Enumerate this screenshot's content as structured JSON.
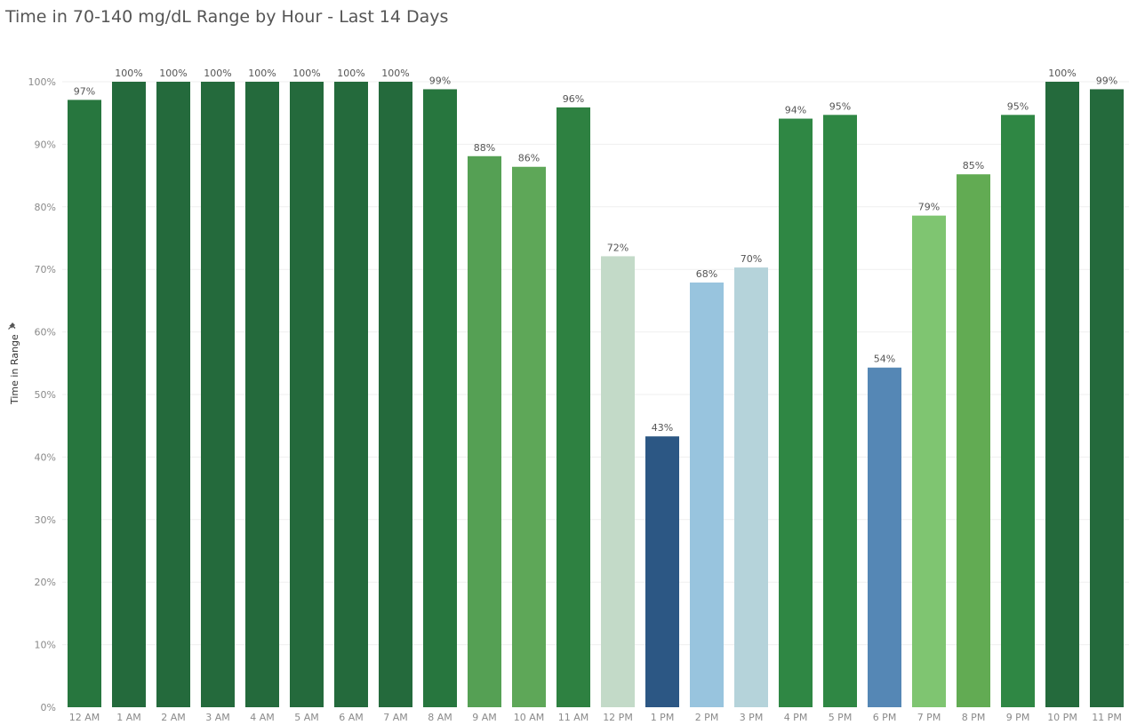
{
  "chart_data": {
    "type": "bar",
    "title": "Time in 70-140 mg/dL Range by Hour - Last 14 Days",
    "ylabel": "Time in Range",
    "xlabel": "",
    "ylim": [
      0,
      100
    ],
    "y_ticks": [
      "0%",
      "10%",
      "20%",
      "30%",
      "40%",
      "50%",
      "60%",
      "70%",
      "80%",
      "90%",
      "100%"
    ],
    "grid": true,
    "categories": [
      "12 AM",
      "1 AM",
      "2 AM",
      "3 AM",
      "4 AM",
      "5 AM",
      "6 AM",
      "7 AM",
      "8 AM",
      "9 AM",
      "10 AM",
      "11 AM",
      "12 PM",
      "1 PM",
      "2 PM",
      "3 PM",
      "4 PM",
      "5 PM",
      "6 PM",
      "7 PM",
      "8 PM",
      "9 PM",
      "10 PM",
      "11 PM"
    ],
    "values": [
      97.1,
      100,
      100,
      100,
      100,
      100,
      100,
      100,
      98.8,
      88.1,
      86.4,
      95.9,
      72.1,
      43.3,
      67.9,
      70.3,
      94.1,
      94.7,
      54.3,
      78.6,
      85.2,
      94.7,
      100,
      98.8
    ],
    "data_labels": [
      "97%",
      "100%",
      "100%",
      "100%",
      "100%",
      "100%",
      "100%",
      "100%",
      "99%",
      "88%",
      "86%",
      "96%",
      "72%",
      "43%",
      "68%",
      "70%",
      "94%",
      "95%",
      "54%",
      "79%",
      "85%",
      "95%",
      "100%",
      "99%"
    ],
    "colors": [
      "#27763e",
      "#246a3c",
      "#246a3c",
      "#246a3c",
      "#246a3c",
      "#246a3c",
      "#246a3c",
      "#246a3c",
      "#27763e",
      "#55a054",
      "#5ea758",
      "#2e8141",
      "#c3dac8",
      "#2c5784",
      "#98c4de",
      "#b5d3da",
      "#2f8744",
      "#2f8744",
      "#5587b5",
      "#7fc571",
      "#62ab53",
      "#2f8744",
      "#246a3c",
      "#246a3c"
    ]
  }
}
